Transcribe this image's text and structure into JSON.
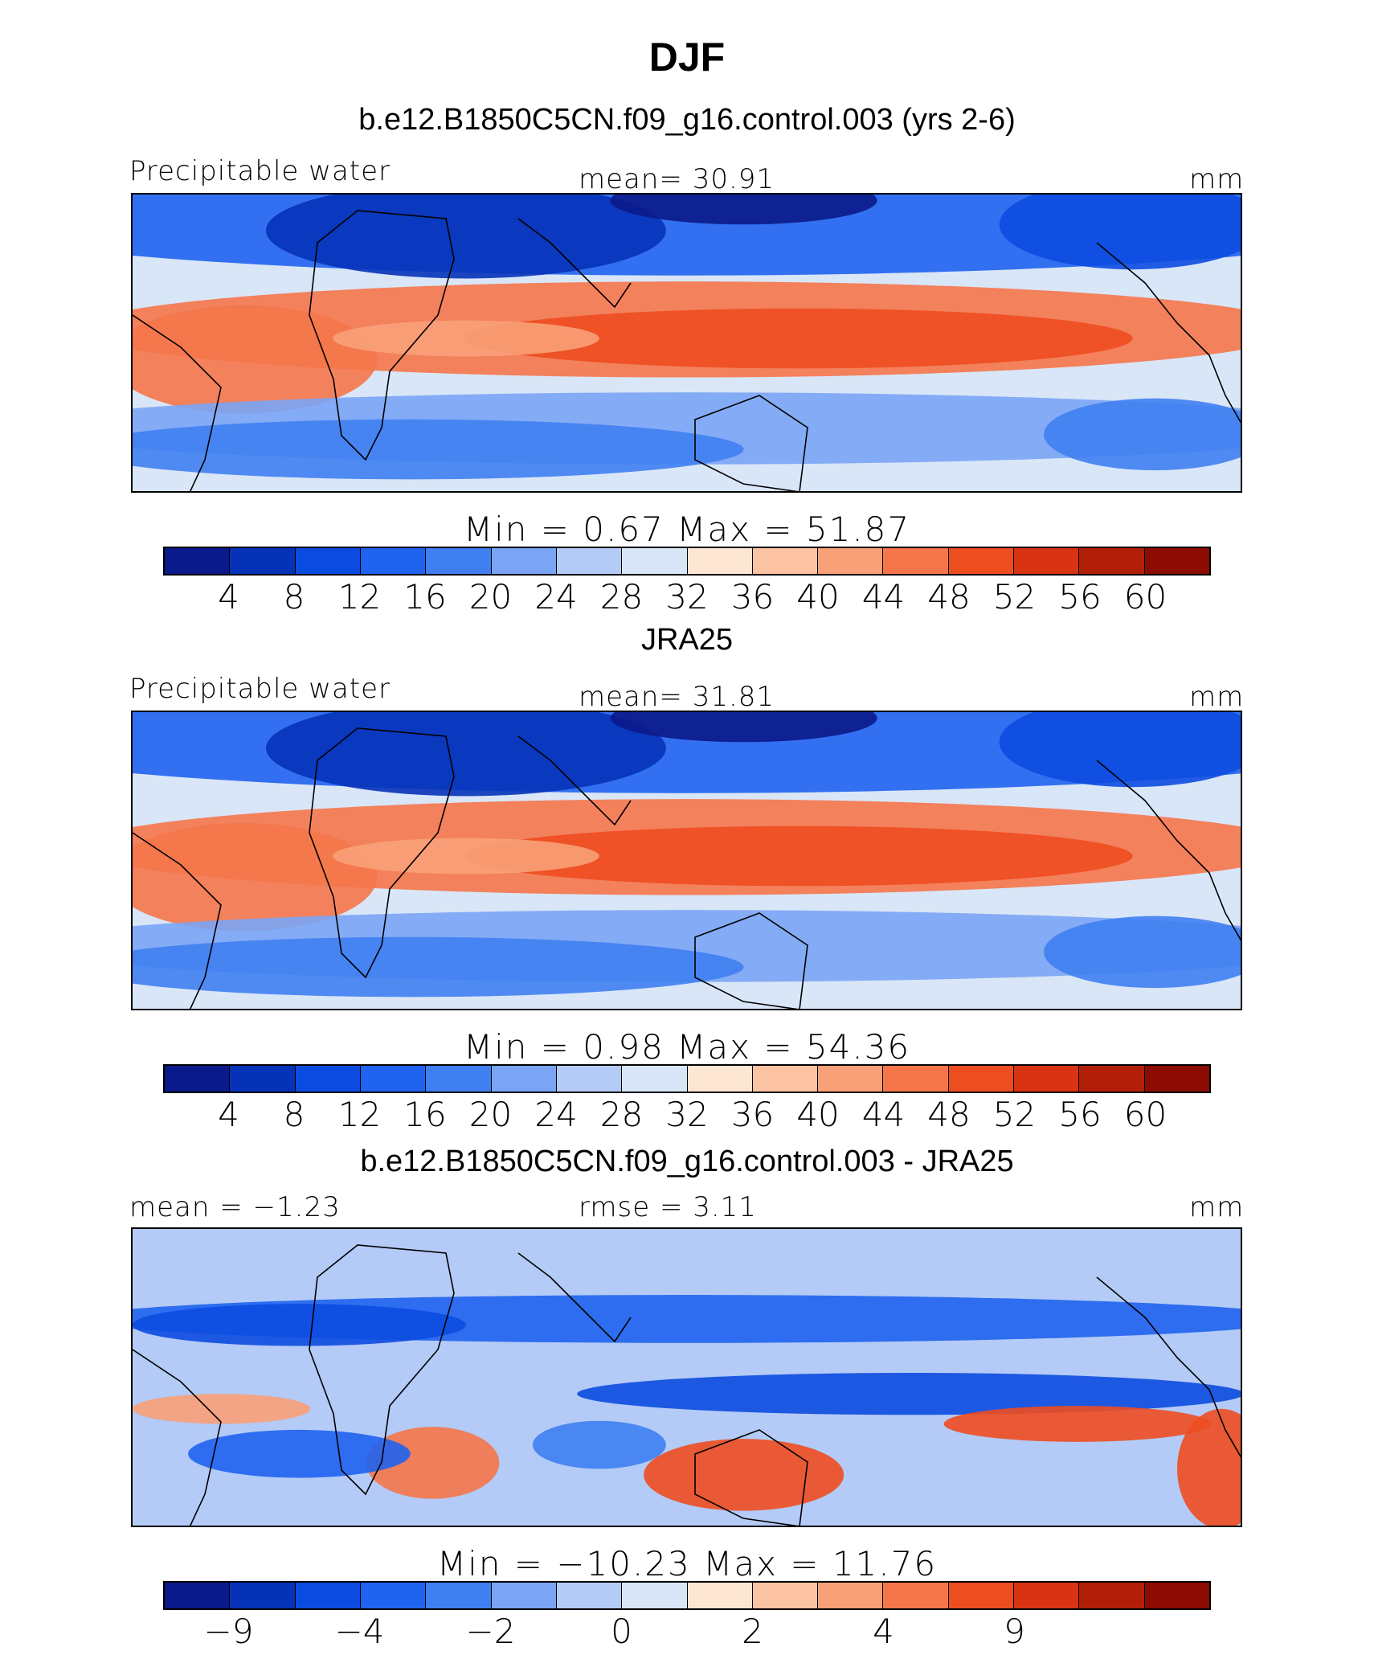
{
  "title": "DJF",
  "colors": {
    "ramp": [
      "#0a1a8a",
      "#0632b8",
      "#0c4be0",
      "#1f63f0",
      "#3f7ff2",
      "#7aa4f4",
      "#b3cbf6",
      "#d9e6f8",
      "#fde7d2",
      "#fbc3a2",
      "#f8a078",
      "#f5764a",
      "#ee4d20",
      "#d83312",
      "#b21f08",
      "#8c0c04"
    ],
    "coast": "#000000"
  },
  "panels": [
    {
      "subtitle": "b.e12.B1850C5CN.f09_g16.control.003 (yrs 2-6)",
      "left_label": "Precipitable water",
      "center_label": "mean=   30.91",
      "right_label": "mm",
      "stats": "Min  =    0.67  Max  =   51.87",
      "ticks": [
        "4",
        "8",
        "12",
        "16",
        "20",
        "24",
        "28",
        "32",
        "36",
        "40",
        "44",
        "48",
        "52",
        "56",
        "60"
      ],
      "field": "mean"
    },
    {
      "subtitle": "JRA25",
      "left_label": "Precipitable water",
      "center_label": "mean=   31.81",
      "right_label": "mm",
      "stats": "Min  =    0.98  Max  =   54.36",
      "ticks": [
        "4",
        "8",
        "12",
        "16",
        "20",
        "24",
        "28",
        "32",
        "36",
        "40",
        "44",
        "48",
        "52",
        "56",
        "60"
      ],
      "field": "mean"
    },
    {
      "subtitle": "b.e12.B1850C5CN.f09_g16.control.003 - JRA25",
      "left_label": "mean =  −1.23",
      "center_label": "rmse =     3.11",
      "right_label": "mm",
      "stats": "Min  = −10.23  Max  =   11.76",
      "ticks": [
        "−9",
        "",
        "−4",
        "",
        "−2",
        "",
        "0",
        "",
        "2",
        "",
        "4",
        "",
        "9",
        "",
        ""
      ],
      "field": "diff"
    }
  ]
}
